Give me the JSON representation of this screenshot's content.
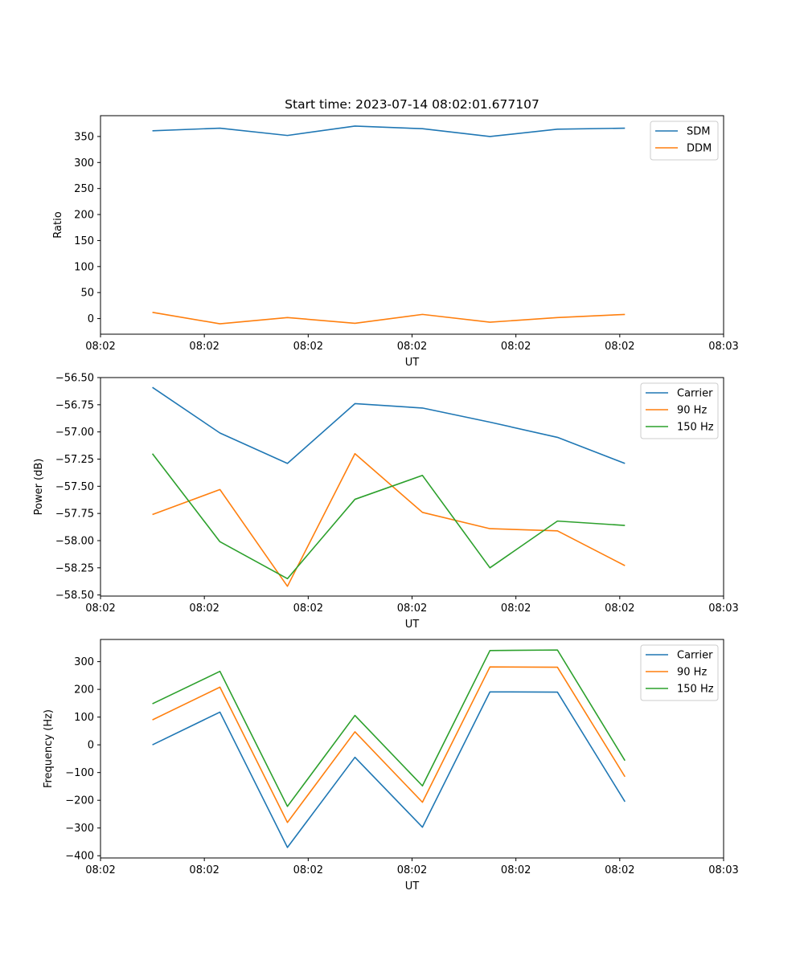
{
  "chart_data": [
    {
      "type": "line",
      "title": "Start time: 2023-07-14 08:02:01.677107",
      "xlabel": "UT",
      "ylabel": "Ratio",
      "x_tick_labels": [
        "08:02",
        "08:02",
        "08:02",
        "08:02",
        "08:02",
        "08:02",
        "08:03"
      ],
      "xlim": [
        0,
        6
      ],
      "x": [
        0.5,
        1.15,
        1.8,
        2.45,
        3.1,
        3.75,
        4.4,
        5.05
      ],
      "ylim": [
        -30,
        390
      ],
      "yticks": [
        0,
        50,
        100,
        150,
        200,
        250,
        300,
        350
      ],
      "ytick_labels": [
        "0",
        "50",
        "100",
        "150",
        "200",
        "250",
        "300",
        "350"
      ],
      "legend_position": "top-right",
      "series": [
        {
          "name": "SDM",
          "color": "#1f77b4",
          "values": [
            361,
            366,
            352,
            370,
            365,
            350,
            364,
            366
          ]
        },
        {
          "name": "DDM",
          "color": "#ff7f0e",
          "values": [
            12,
            -10,
            2,
            -9,
            8,
            -7,
            2,
            8
          ]
        }
      ]
    },
    {
      "type": "line",
      "title": "",
      "xlabel": "UT",
      "ylabel": "Power (dB)",
      "x_tick_labels": [
        "08:02",
        "08:02",
        "08:02",
        "08:02",
        "08:02",
        "08:02",
        "08:03"
      ],
      "xlim": [
        0,
        6
      ],
      "x": [
        0.5,
        1.15,
        1.8,
        2.45,
        3.1,
        3.75,
        4.4,
        5.05
      ],
      "ylim": [
        -58.51,
        -56.5
      ],
      "yticks": [
        -56.5,
        -56.75,
        -57.0,
        -57.25,
        -57.5,
        -57.75,
        -58.0,
        -58.25,
        -58.5
      ],
      "ytick_labels": [
        "−56.50",
        "−56.75",
        "−57.00",
        "−57.25",
        "−57.50",
        "−57.75",
        "−58.00",
        "−58.25",
        "−58.50"
      ],
      "legend_position": "top-right",
      "series": [
        {
          "name": "Carrier",
          "color": "#1f77b4",
          "values": [
            -56.59,
            -57.01,
            -57.29,
            -56.74,
            -56.78,
            -56.91,
            -57.05,
            -57.29
          ]
        },
        {
          "name": "90 Hz",
          "color": "#ff7f0e",
          "values": [
            -57.76,
            -57.53,
            -58.42,
            -57.2,
            -57.74,
            -57.89,
            -57.91,
            -58.23
          ]
        },
        {
          "name": "150 Hz",
          "color": "#2ca02c",
          "values": [
            -57.2,
            -58.01,
            -58.35,
            -57.62,
            -57.4,
            -58.25,
            -57.82,
            -57.86
          ]
        }
      ]
    },
    {
      "type": "line",
      "title": "",
      "xlabel": "UT",
      "ylabel": "Frequency (Hz)",
      "x_tick_labels": [
        "08:02",
        "08:02",
        "08:02",
        "08:02",
        "08:02",
        "08:02",
        "08:03"
      ],
      "xlim": [
        0,
        6
      ],
      "x": [
        0.5,
        1.15,
        1.8,
        2.45,
        3.1,
        3.75,
        4.4,
        5.05
      ],
      "ylim": [
        -408,
        380
      ],
      "yticks": [
        -400,
        -300,
        -200,
        -100,
        0,
        100,
        200,
        300
      ],
      "ytick_labels": [
        "−400",
        "−300",
        "−200",
        "−100",
        "0",
        "100",
        "200",
        "300"
      ],
      "legend_position": "top-right",
      "series": [
        {
          "name": "Carrier",
          "color": "#1f77b4",
          "values": [
            0,
            118,
            -370,
            -45,
            -297,
            191,
            190,
            -205
          ]
        },
        {
          "name": "90 Hz",
          "color": "#ff7f0e",
          "values": [
            90,
            208,
            -280,
            47,
            -207,
            281,
            280,
            -115
          ]
        },
        {
          "name": "150 Hz",
          "color": "#2ca02c",
          "values": [
            148,
            265,
            -222,
            106,
            -148,
            340,
            342,
            -57
          ]
        }
      ]
    }
  ]
}
